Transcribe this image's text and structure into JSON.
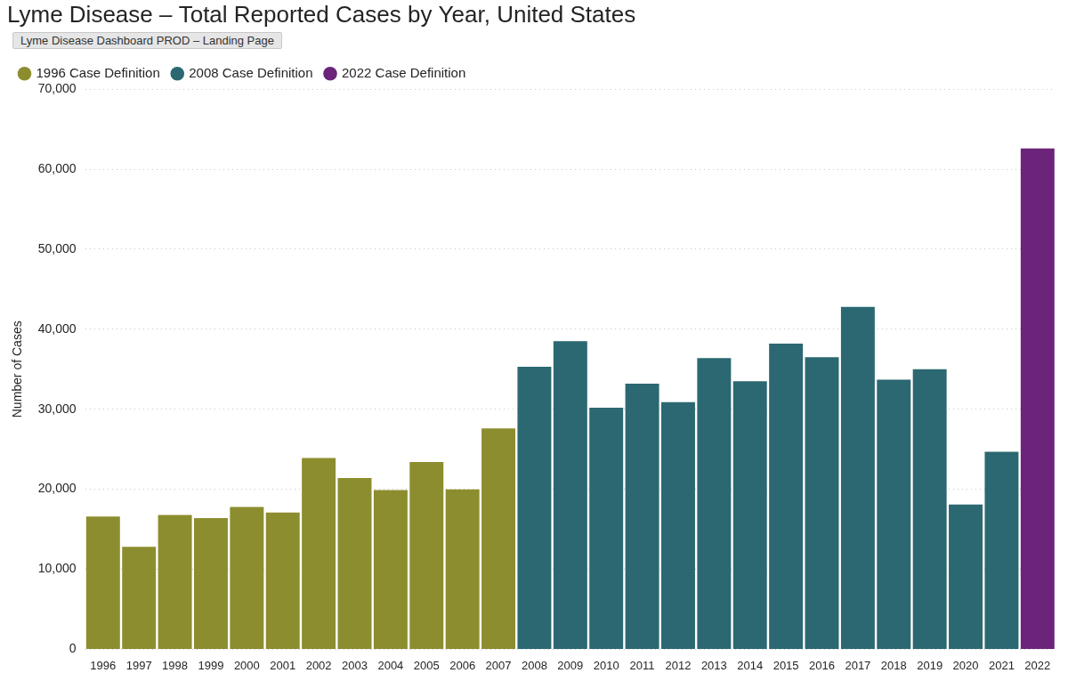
{
  "chart_data": {
    "type": "bar",
    "title": "Lyme Disease – Total Reported Cases by Year, United States",
    "annotations": [
      "Lyme Disease Dashboard PROD – Landing Page"
    ],
    "y_label": "Number of Cases",
    "categories": [
      "1996",
      "1997",
      "1998",
      "1999",
      "2000",
      "2001",
      "2002",
      "2003",
      "2004",
      "2005",
      "2006",
      "2007",
      "2008",
      "2009",
      "2010",
      "2011",
      "2012",
      "2013",
      "2014",
      "2015",
      "2016",
      "2017",
      "2018",
      "2019",
      "2020",
      "2021",
      "2022"
    ],
    "series": [
      {
        "name": "1996 Case Definition",
        "color": "#8c8d2e",
        "values": [
          16600,
          12800,
          16800,
          16400,
          17800,
          17100,
          23900,
          21400,
          19900,
          23400,
          20000,
          27600,
          null,
          null,
          null,
          null,
          null,
          null,
          null,
          null,
          null,
          null,
          null,
          null,
          null,
          null,
          null
        ]
      },
      {
        "name": "2008 Case Definition",
        "color": "#2b6871",
        "values": [
          null,
          null,
          null,
          null,
          null,
          null,
          null,
          null,
          null,
          null,
          null,
          null,
          35300,
          38500,
          30200,
          33200,
          30900,
          36400,
          33500,
          38200,
          36500,
          42800,
          33700,
          35000,
          18100,
          24700,
          null
        ]
      },
      {
        "name": "2022 Case Definition",
        "color": "#6b247a",
        "values": [
          null,
          null,
          null,
          null,
          null,
          null,
          null,
          null,
          null,
          null,
          null,
          null,
          null,
          null,
          null,
          null,
          null,
          null,
          null,
          null,
          null,
          null,
          null,
          null,
          null,
          null,
          62600
        ]
      }
    ],
    "ylim": [
      0,
      70000
    ],
    "yticks": [
      0,
      {
        "value": 10000,
        "label": "10,000"
      },
      {
        "value": 20000,
        "label": "20,000"
      },
      {
        "value": 30000,
        "label": "30,000"
      },
      {
        "value": 40000,
        "label": "40,000"
      },
      {
        "value": 50000,
        "label": "50,000"
      },
      {
        "value": 60000,
        "label": "60,000"
      },
      {
        "value": 70000,
        "label": "70,000"
      }
    ],
    "grid": true,
    "legend": "top-left"
  }
}
